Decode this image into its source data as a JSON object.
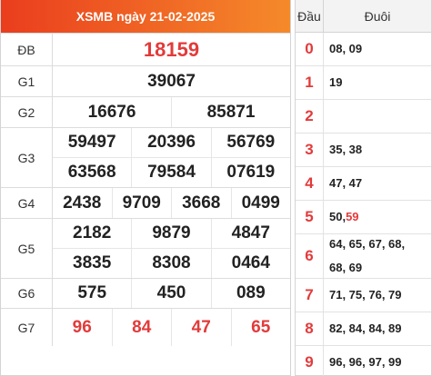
{
  "header": {
    "title": "XSMB ngày 21-02-2025"
  },
  "prizes": [
    {
      "label": "ĐB",
      "lines": [
        [
          "18159"
        ]
      ],
      "red": true,
      "big": true
    },
    {
      "label": "G1",
      "lines": [
        [
          "39067"
        ]
      ]
    },
    {
      "label": "G2",
      "lines": [
        [
          "16676",
          "85871"
        ]
      ]
    },
    {
      "label": "G3",
      "lines": [
        [
          "59497",
          "20396",
          "56769"
        ],
        [
          "63568",
          "79584",
          "07619"
        ]
      ]
    },
    {
      "label": "G4",
      "lines": [
        [
          "2438",
          "9709",
          "3668",
          "0499"
        ]
      ]
    },
    {
      "label": "G5",
      "lines": [
        [
          "2182",
          "9879",
          "4847"
        ],
        [
          "3835",
          "8308",
          "0464"
        ]
      ]
    },
    {
      "label": "G6",
      "lines": [
        [
          "575",
          "450",
          "089"
        ]
      ]
    },
    {
      "label": "G7",
      "lines": [
        [
          "96",
          "84",
          "47",
          "65"
        ]
      ],
      "red": true
    }
  ],
  "dau_duoi": {
    "head_label": "Đầu",
    "tail_label": "Đuôi",
    "rows": [
      {
        "digit": "0",
        "tails": [
          {
            "t": "08, 09"
          }
        ]
      },
      {
        "digit": "1",
        "tails": [
          {
            "t": "19"
          }
        ]
      },
      {
        "digit": "2",
        "tails": []
      },
      {
        "digit": "3",
        "tails": [
          {
            "t": "35, 38"
          }
        ]
      },
      {
        "digit": "4",
        "tails": [
          {
            "t": "47, 47"
          }
        ]
      },
      {
        "digit": "5",
        "tails": [
          {
            "t": "50, "
          },
          {
            "t": "59",
            "red": true
          }
        ]
      },
      {
        "digit": "6",
        "tails": [
          {
            "t": "64, 65, 67, 68,"
          },
          {
            "t": "68, 69"
          }
        ],
        "wrap": true
      },
      {
        "digit": "7",
        "tails": [
          {
            "t": "71, 75, 76, 79"
          }
        ]
      },
      {
        "digit": "8",
        "tails": [
          {
            "t": "82, 84, 84, 89"
          }
        ]
      },
      {
        "digit": "9",
        "tails": [
          {
            "t": "96, 96, 97, 99"
          }
        ]
      }
    ]
  },
  "colors": {
    "header_start": "#ea3d1e",
    "header_end": "#f58a2a",
    "accent_red": "#e23b3b"
  }
}
